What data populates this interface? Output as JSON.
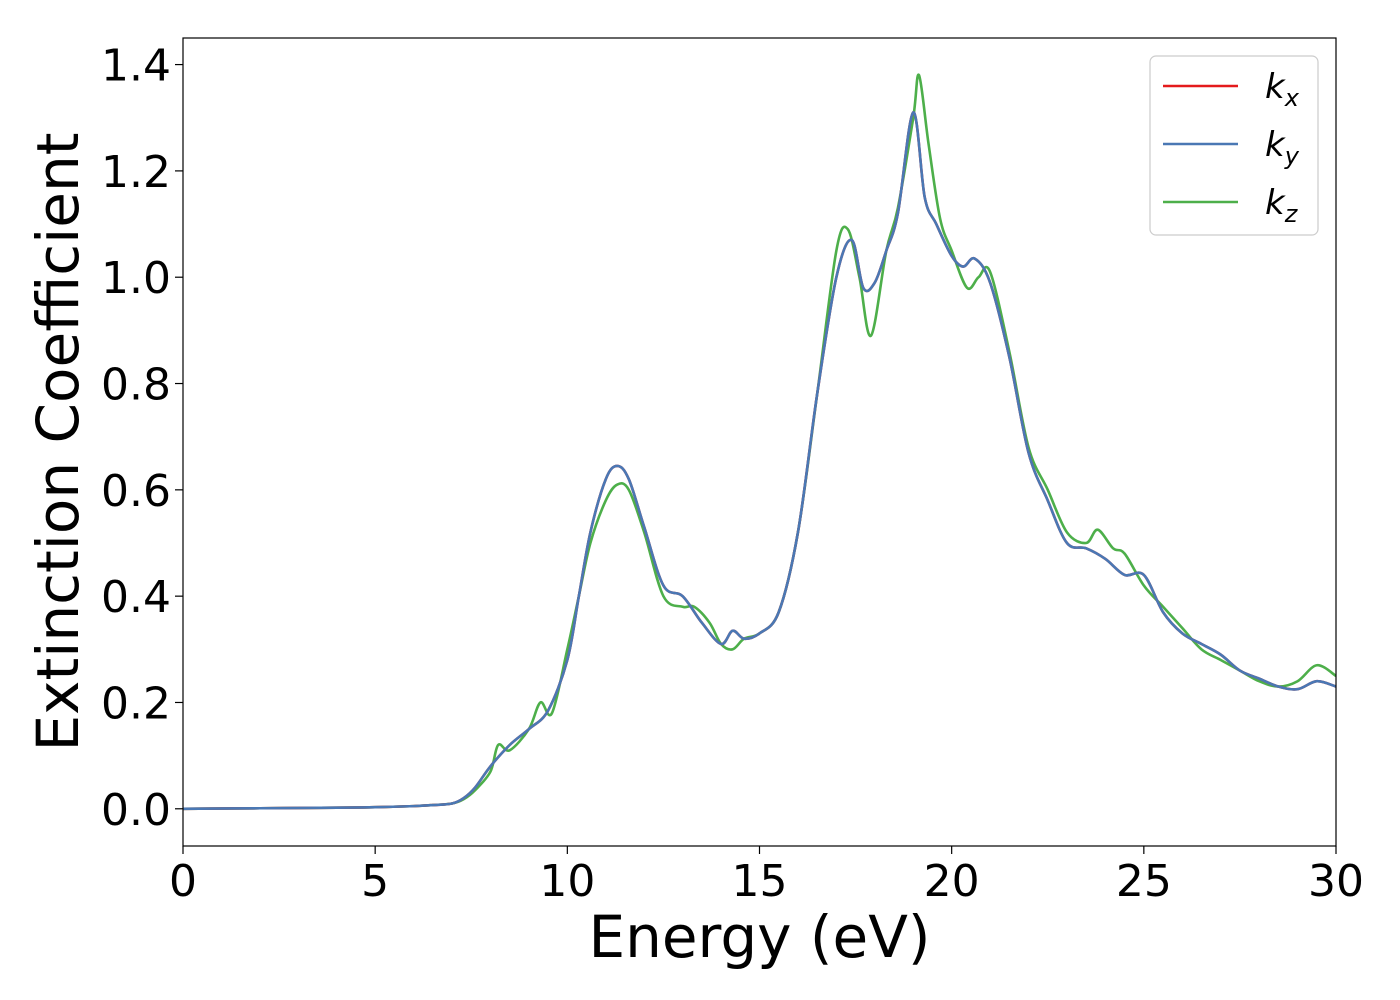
{
  "chart_data": {
    "type": "line",
    "title": "",
    "xlabel": "Energy (eV)",
    "ylabel": "Extinction Coefficient",
    "xlim": [
      0,
      30
    ],
    "ylim": [
      -0.07,
      1.45
    ],
    "xticks": [
      0,
      5,
      10,
      15,
      20,
      25,
      30
    ],
    "xtick_labels": [
      "0",
      "5",
      "10",
      "15",
      "20",
      "25",
      "30"
    ],
    "yticks": [
      0.0,
      0.2,
      0.4,
      0.6,
      0.8,
      1.0,
      1.2,
      1.4
    ],
    "ytick_labels": [
      "0.0",
      "0.2",
      "0.4",
      "0.6",
      "0.8",
      "1.0",
      "1.2",
      "1.4"
    ],
    "grid": false,
    "legend_position": "top-right",
    "series": [
      {
        "name": "k",
        "subscript": "x",
        "color": "#e41a1c",
        "x": [
          0,
          2,
          4,
          5,
          6,
          6.5,
          7,
          7.3,
          7.6,
          8,
          8.5,
          9,
          9.5,
          10,
          10.3,
          10.6,
          11,
          11.3,
          11.6,
          12,
          12.5,
          13,
          13.5,
          14,
          14.3,
          14.6,
          15,
          15.5,
          16,
          16.5,
          17,
          17.4,
          17.7,
          18,
          18.3,
          18.6,
          19,
          19.3,
          19.6,
          20,
          20.3,
          20.6,
          21,
          21.5,
          22,
          22.5,
          23,
          23.5,
          24,
          24.5,
          25,
          25.5,
          26,
          26.5,
          27,
          27.5,
          28,
          28.5,
          29,
          29.5,
          30
        ],
        "y": [
          0,
          0.001,
          0.002,
          0.003,
          0.005,
          0.007,
          0.01,
          0.02,
          0.04,
          0.08,
          0.12,
          0.15,
          0.185,
          0.28,
          0.4,
          0.52,
          0.62,
          0.645,
          0.62,
          0.53,
          0.42,
          0.4,
          0.35,
          0.31,
          0.335,
          0.32,
          0.33,
          0.37,
          0.52,
          0.78,
          1.0,
          1.07,
          0.98,
          0.99,
          1.05,
          1.12,
          1.31,
          1.15,
          1.1,
          1.04,
          1.02,
          1.035,
          0.99,
          0.85,
          0.67,
          0.58,
          0.5,
          0.49,
          0.47,
          0.44,
          0.44,
          0.37,
          0.33,
          0.31,
          0.29,
          0.26,
          0.245,
          0.23,
          0.225,
          0.24,
          0.23
        ]
      },
      {
        "name": "k",
        "subscript": "y",
        "color": "#4a78b4",
        "x": [
          0,
          2,
          4,
          5,
          6,
          6.5,
          7,
          7.3,
          7.6,
          8,
          8.5,
          9,
          9.5,
          10,
          10.3,
          10.6,
          11,
          11.3,
          11.6,
          12,
          12.5,
          13,
          13.5,
          14,
          14.3,
          14.6,
          15,
          15.5,
          16,
          16.5,
          17,
          17.4,
          17.7,
          18,
          18.3,
          18.6,
          19,
          19.3,
          19.6,
          20,
          20.3,
          20.6,
          21,
          21.5,
          22,
          22.5,
          23,
          23.5,
          24,
          24.5,
          25,
          25.5,
          26,
          26.5,
          27,
          27.5,
          28,
          28.5,
          29,
          29.5,
          30
        ],
        "y": [
          0,
          0.001,
          0.002,
          0.003,
          0.005,
          0.007,
          0.01,
          0.02,
          0.04,
          0.08,
          0.12,
          0.15,
          0.185,
          0.28,
          0.4,
          0.52,
          0.62,
          0.645,
          0.62,
          0.53,
          0.42,
          0.4,
          0.35,
          0.31,
          0.335,
          0.32,
          0.33,
          0.37,
          0.52,
          0.78,
          1.0,
          1.07,
          0.98,
          0.99,
          1.05,
          1.12,
          1.31,
          1.15,
          1.1,
          1.04,
          1.02,
          1.035,
          0.99,
          0.85,
          0.67,
          0.58,
          0.5,
          0.49,
          0.47,
          0.44,
          0.44,
          0.37,
          0.33,
          0.31,
          0.29,
          0.26,
          0.245,
          0.23,
          0.225,
          0.24,
          0.23
        ]
      },
      {
        "name": "k",
        "subscript": "z",
        "color": "#4daf4a",
        "x": [
          0,
          2,
          4,
          5,
          6,
          6.5,
          7,
          7.3,
          7.6,
          8,
          8.2,
          8.5,
          9,
          9.3,
          9.6,
          10,
          10.3,
          10.6,
          11,
          11.3,
          11.6,
          12,
          12.5,
          13,
          13.3,
          13.7,
          14,
          14.3,
          14.6,
          15,
          15.5,
          16,
          16.5,
          17,
          17.3,
          17.6,
          17.9,
          18.3,
          18.6,
          19,
          19.15,
          19.4,
          19.7,
          20,
          20.4,
          20.7,
          21,
          21.5,
          22,
          22.5,
          23,
          23.5,
          23.8,
          24.2,
          24.5,
          25,
          25.5,
          26,
          26.5,
          27,
          27.5,
          28,
          28.5,
          29,
          29.5,
          30
        ],
        "y": [
          0,
          0.001,
          0.002,
          0.003,
          0.005,
          0.007,
          0.01,
          0.018,
          0.035,
          0.07,
          0.12,
          0.11,
          0.15,
          0.2,
          0.18,
          0.3,
          0.4,
          0.5,
          0.58,
          0.61,
          0.6,
          0.52,
          0.4,
          0.38,
          0.38,
          0.35,
          0.31,
          0.3,
          0.32,
          0.33,
          0.37,
          0.52,
          0.78,
          1.05,
          1.09,
          1.0,
          0.89,
          1.05,
          1.13,
          1.3,
          1.38,
          1.25,
          1.11,
          1.05,
          0.98,
          1.0,
          1.01,
          0.86,
          0.68,
          0.6,
          0.52,
          0.5,
          0.525,
          0.49,
          0.48,
          0.42,
          0.38,
          0.34,
          0.3,
          0.28,
          0.26,
          0.24,
          0.23,
          0.24,
          0.27,
          0.25
        ]
      }
    ]
  }
}
